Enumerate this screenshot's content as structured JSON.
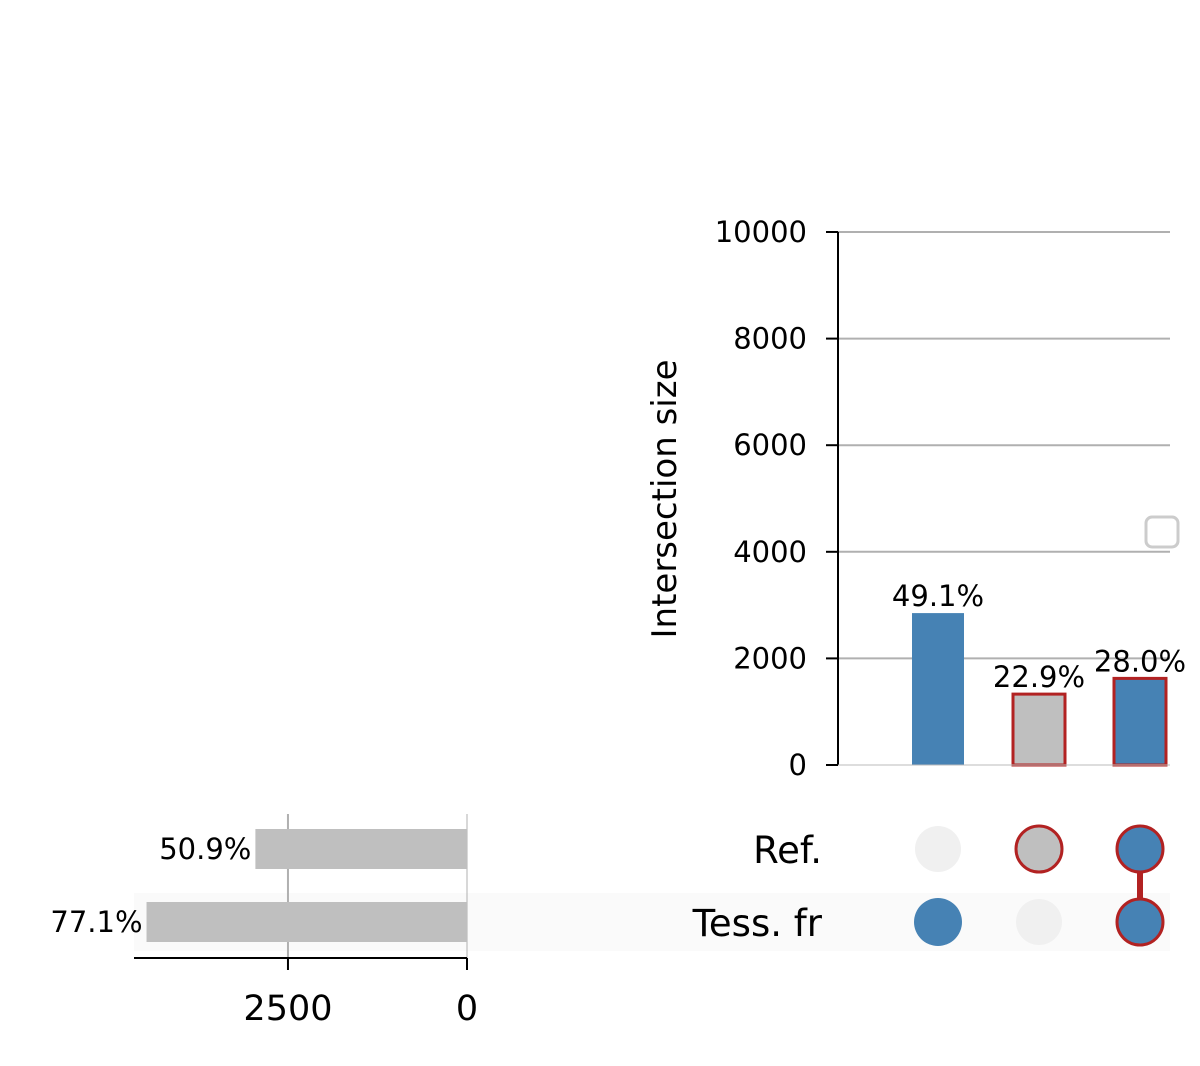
{
  "chart_data": {
    "type": "bar",
    "subtype": "upset",
    "title": "",
    "intersection_axis": {
      "ylabel": "Intersection size",
      "ylim": [
        0,
        10000
      ],
      "ticks": [
        0,
        2000,
        4000,
        6000,
        8000,
        10000
      ],
      "tick_labels": [
        "0",
        "2000",
        "4000",
        "6000",
        "8000",
        "10000"
      ],
      "grid": true
    },
    "intersections": [
      {
        "members": [
          "Tess. fr"
        ],
        "value": 2850,
        "label": "49.1%",
        "color": "#4682b4",
        "highlight": false
      },
      {
        "members": [
          "Ref."
        ],
        "value": 1330,
        "label": "22.9%",
        "color": "#bfbfbf",
        "highlight": true
      },
      {
        "members": [
          "Ref.",
          "Tess. fr"
        ],
        "value": 1625,
        "label": "28.0%",
        "color": "#4682b4",
        "highlight": true
      }
    ],
    "sets": [
      {
        "name": "Ref.",
        "size": 2955,
        "label": "50.9%"
      },
      {
        "name": "Tess. fr",
        "size": 4475,
        "label": "77.1%"
      }
    ],
    "set_axis": {
      "ticks": [
        2500,
        0
      ],
      "tick_labels": [
        "2500",
        "0"
      ],
      "xlim": [
        0,
        4650
      ],
      "inverted": true,
      "grid": true
    },
    "legend": {
      "placement": "right",
      "entries": []
    },
    "colors": {
      "accent": "#4682b4",
      "neutral": "#bfbfbf",
      "highlight_edge": "#b22222",
      "inactive_dot": "#f0f0f0",
      "grid": "#b0b0b0",
      "row_shade": "#fafafa"
    }
  }
}
